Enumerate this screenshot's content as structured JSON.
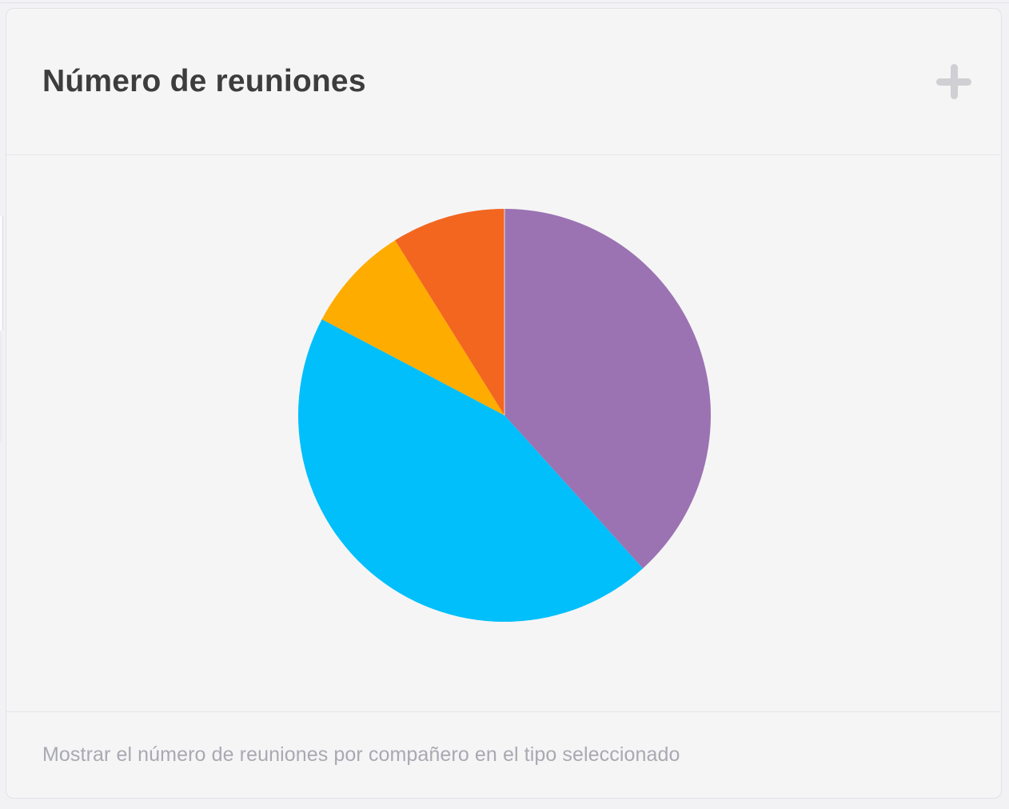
{
  "widget": {
    "title": "Número de reuniones",
    "description": "Mostrar el número de reuniones por compañero en el tipo seleccionado",
    "add_icon": "plus"
  },
  "chart_data": {
    "type": "pie",
    "title": "Número de reuniones",
    "values": [
      38.3,
      44.4,
      8.4,
      8.9
    ],
    "values_note": "estimated percent shares read from slice angles; no numeric labels visible",
    "colors": [
      "#9B73B2",
      "#00BFFA",
      "#FFAC00",
      "#F2661F"
    ],
    "legend": "none",
    "data_labels": "none",
    "start_angle_deg": 0,
    "direction": "clockwise"
  },
  "ui_colors": {
    "page_bg": "#f2f2f4",
    "card_bg": "#f5f5f6",
    "card_border": "#e2e2e8",
    "divider": "#e6e6eb",
    "title_text": "#3d3d3d",
    "muted_text": "#a9a9b1",
    "plus_icon": "#cfcfd4"
  }
}
